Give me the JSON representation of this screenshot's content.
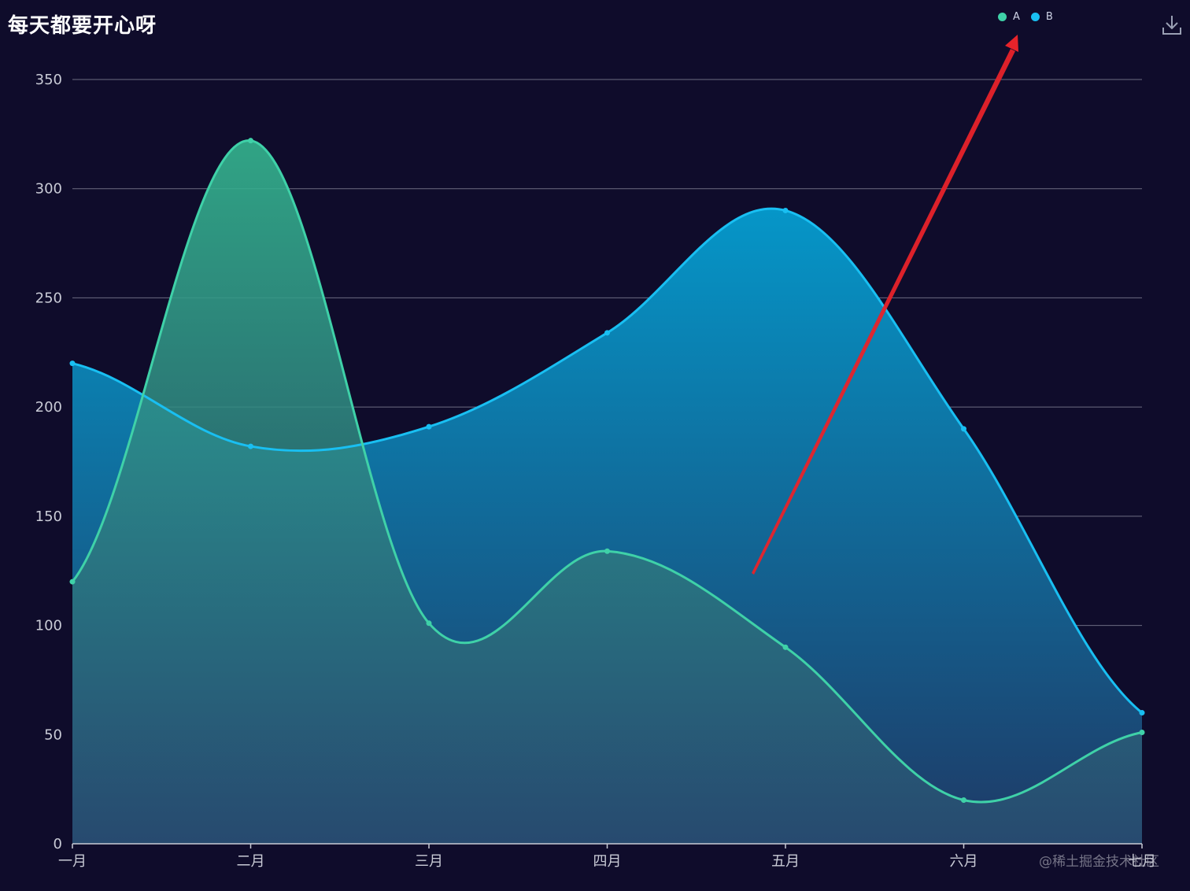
{
  "title": "每天都要开心呀",
  "legend": [
    {
      "name": "A",
      "color": "#3fd1a8"
    },
    {
      "name": "B",
      "color": "#19bff2"
    }
  ],
  "toolbar": {
    "download_icon": "download-icon"
  },
  "watermark": "@稀土掘金技术社区",
  "chart_data": {
    "type": "area",
    "title": "每天都要开心呀",
    "categories": [
      "一月",
      "二月",
      "三月",
      "四月",
      "五月",
      "六月",
      "七月"
    ],
    "series": [
      {
        "name": "A",
        "color": "#3fd1a8",
        "values": [
          120,
          322,
          101,
          134,
          90,
          20,
          51
        ],
        "smooth": true
      },
      {
        "name": "B",
        "color": "#19bff2",
        "values": [
          220,
          182,
          191,
          234,
          290,
          190,
          60
        ],
        "smooth": true
      }
    ],
    "yticks": [
      0,
      50,
      100,
      150,
      200,
      250,
      300,
      350
    ],
    "ylim": [
      0,
      350
    ],
    "grid": true,
    "legend_position": "top-right"
  },
  "annotation": {
    "type": "arrow",
    "color": "#e8232a",
    "from": [
      "四月 ~ 五月",
      125
    ],
    "to": "legend"
  }
}
